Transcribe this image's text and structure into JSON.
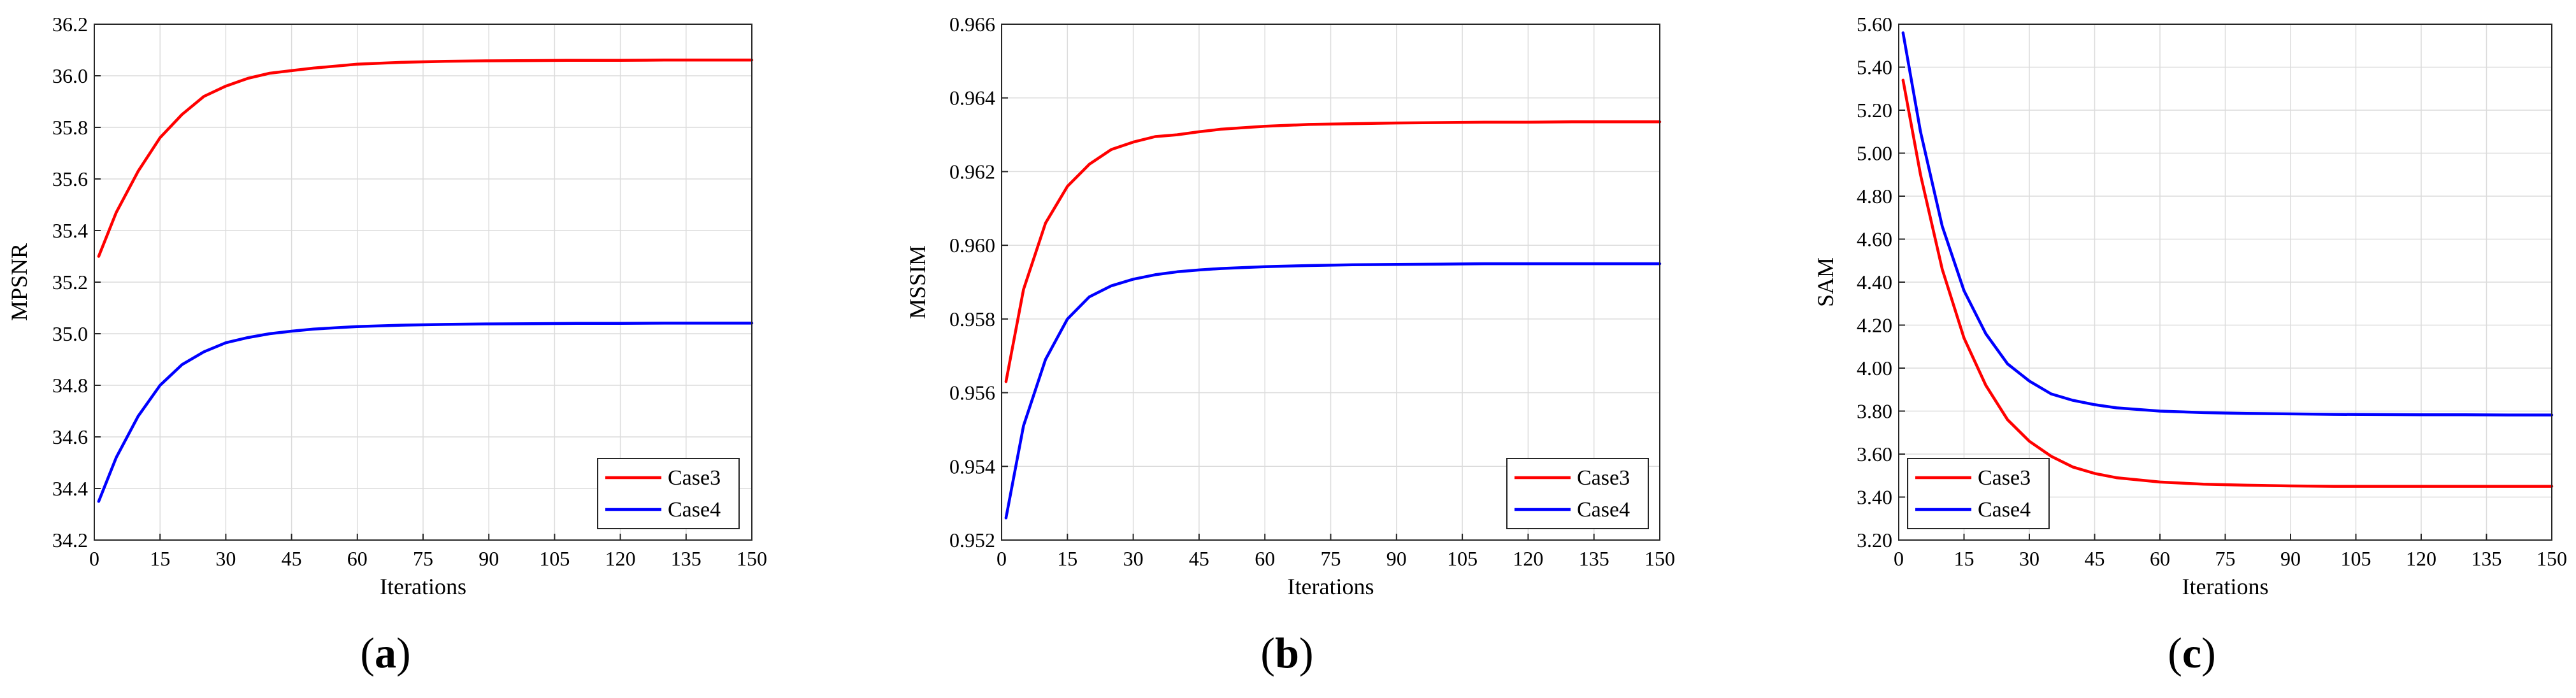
{
  "chart_data": [
    {
      "type": "line",
      "panel_label": "a",
      "xlabel": "Iterations",
      "ylabel": "MPSNR",
      "xlim": [
        0,
        150
      ],
      "ylim": [
        34.2,
        36.2
      ],
      "xticks": [
        0,
        15,
        30,
        45,
        60,
        75,
        90,
        105,
        120,
        135,
        150
      ],
      "yticks": [
        34.2,
        34.4,
        34.6,
        34.8,
        35.0,
        35.2,
        35.4,
        35.6,
        35.8,
        36.0,
        36.2
      ],
      "ytick_labels": [
        "34.2",
        "34.4",
        "34.6",
        "34.8",
        "35.0",
        "35.2",
        "35.4",
        "35.6",
        "35.8",
        "36.0",
        "36.2"
      ],
      "grid": true,
      "legend_position": "bottom-right",
      "series": [
        {
          "name": "Case3",
          "color": "#ff0000",
          "x": [
            1,
            5,
            10,
            15,
            20,
            25,
            30,
            35,
            40,
            45,
            50,
            60,
            70,
            80,
            90,
            100,
            110,
            120,
            130,
            140,
            150
          ],
          "y": [
            35.3,
            35.47,
            35.63,
            35.76,
            35.85,
            35.92,
            35.96,
            35.99,
            36.01,
            36.02,
            36.03,
            36.045,
            36.052,
            36.056,
            36.058,
            36.059,
            36.06,
            36.06,
            36.061,
            36.061,
            36.061
          ]
        },
        {
          "name": "Case4",
          "color": "#0000ff",
          "x": [
            1,
            5,
            10,
            15,
            20,
            25,
            30,
            35,
            40,
            45,
            50,
            60,
            70,
            80,
            90,
            100,
            110,
            120,
            130,
            140,
            150
          ],
          "y": [
            34.35,
            34.52,
            34.68,
            34.8,
            34.88,
            34.93,
            34.965,
            34.985,
            35.0,
            35.01,
            35.018,
            35.028,
            35.033,
            35.036,
            35.038,
            35.039,
            35.04,
            35.04,
            35.041,
            35.041,
            35.041
          ]
        }
      ]
    },
    {
      "type": "line",
      "panel_label": "b",
      "xlabel": "Iterations",
      "ylabel": "MSSIM",
      "xlim": [
        0,
        150
      ],
      "ylim": [
        0.952,
        0.966
      ],
      "xticks": [
        0,
        15,
        30,
        45,
        60,
        75,
        90,
        105,
        120,
        135,
        150
      ],
      "yticks": [
        0.952,
        0.954,
        0.956,
        0.958,
        0.96,
        0.962,
        0.964,
        0.966
      ],
      "ytick_labels": [
        "0.952",
        "0.954",
        "0.956",
        "0.958",
        "0.960",
        "0.962",
        "0.964",
        "0.966"
      ],
      "grid": true,
      "legend_position": "bottom-right",
      "series": [
        {
          "name": "Case3",
          "color": "#ff0000",
          "x": [
            1,
            5,
            10,
            15,
            20,
            25,
            30,
            35,
            40,
            45,
            50,
            60,
            70,
            80,
            90,
            100,
            110,
            120,
            130,
            140,
            150
          ],
          "y": [
            0.9563,
            0.9588,
            0.9606,
            0.9616,
            0.9622,
            0.9626,
            0.9628,
            0.96295,
            0.963,
            0.96308,
            0.96315,
            0.96323,
            0.96328,
            0.9633,
            0.96332,
            0.96333,
            0.96334,
            0.96334,
            0.96335,
            0.96335,
            0.96335
          ]
        },
        {
          "name": "Case4",
          "color": "#0000ff",
          "x": [
            1,
            5,
            10,
            15,
            20,
            25,
            30,
            35,
            40,
            45,
            50,
            60,
            70,
            80,
            90,
            100,
            110,
            120,
            130,
            140,
            150
          ],
          "y": [
            0.9526,
            0.9551,
            0.9569,
            0.958,
            0.9586,
            0.9589,
            0.95908,
            0.9592,
            0.95928,
            0.95933,
            0.95937,
            0.95942,
            0.95945,
            0.95947,
            0.95948,
            0.95949,
            0.9595,
            0.9595,
            0.9595,
            0.9595,
            0.9595
          ]
        }
      ]
    },
    {
      "type": "line",
      "panel_label": "c",
      "xlabel": "Iterations",
      "ylabel": "SAM",
      "xlim": [
        0,
        150
      ],
      "ylim": [
        3.2,
        5.6
      ],
      "xticks": [
        0,
        15,
        30,
        45,
        60,
        75,
        90,
        105,
        120,
        135,
        150
      ],
      "yticks": [
        3.2,
        3.4,
        3.6,
        3.8,
        4.0,
        4.2,
        4.4,
        4.6,
        4.8,
        5.0,
        5.2,
        5.4,
        5.6
      ],
      "ytick_labels": [
        "3.20",
        "3.40",
        "3.60",
        "3.80",
        "4.00",
        "4.20",
        "4.40",
        "4.60",
        "4.80",
        "5.00",
        "5.20",
        "5.40",
        "5.60"
      ],
      "grid": true,
      "legend_position": "bottom-left",
      "series": [
        {
          "name": "Case3",
          "color": "#ff0000",
          "x": [
            1,
            5,
            10,
            15,
            20,
            25,
            30,
            35,
            40,
            45,
            50,
            60,
            70,
            80,
            90,
            100,
            110,
            120,
            130,
            140,
            150
          ],
          "y": [
            5.34,
            4.9,
            4.46,
            4.14,
            3.92,
            3.76,
            3.66,
            3.59,
            3.54,
            3.51,
            3.49,
            3.47,
            3.46,
            3.455,
            3.452,
            3.45,
            3.45,
            3.45,
            3.45,
            3.45,
            3.45
          ]
        },
        {
          "name": "Case4",
          "color": "#0000ff",
          "x": [
            1,
            5,
            10,
            15,
            20,
            25,
            30,
            35,
            40,
            45,
            50,
            60,
            70,
            80,
            90,
            100,
            110,
            120,
            130,
            140,
            150
          ],
          "y": [
            5.56,
            5.1,
            4.66,
            4.36,
            4.16,
            4.02,
            3.94,
            3.88,
            3.85,
            3.83,
            3.815,
            3.8,
            3.793,
            3.789,
            3.787,
            3.785,
            3.784,
            3.783,
            3.783,
            3.782,
            3.782
          ]
        }
      ]
    }
  ]
}
